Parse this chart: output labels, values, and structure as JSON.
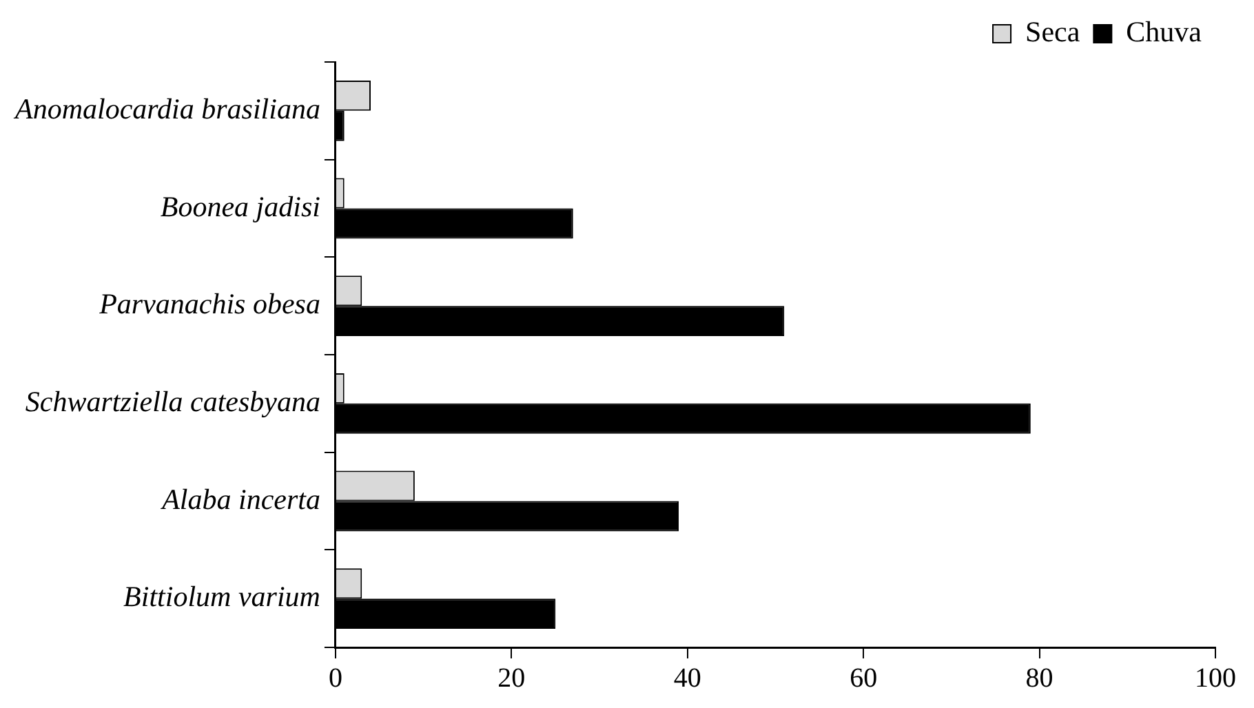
{
  "chart_data": {
    "type": "bar",
    "orientation": "horizontal",
    "categories": [
      "Anomalocardia brasiliana",
      "Boonea jadisi",
      "Parvanachis obesa",
      "Schwartziella catesbyana",
      "Alaba incerta",
      "Bittiolum varium"
    ],
    "series": [
      {
        "name": "Seca",
        "color": "#d9d9d9",
        "values": [
          4,
          1,
          3,
          1,
          9,
          3
        ]
      },
      {
        "name": "Chuva",
        "color": "#000000",
        "values": [
          1,
          27,
          51,
          79,
          39,
          25
        ]
      }
    ],
    "xlim": [
      0,
      100
    ],
    "xticks": [
      0,
      20,
      40,
      60,
      80,
      100
    ],
    "grid": false,
    "legend": "top right"
  }
}
